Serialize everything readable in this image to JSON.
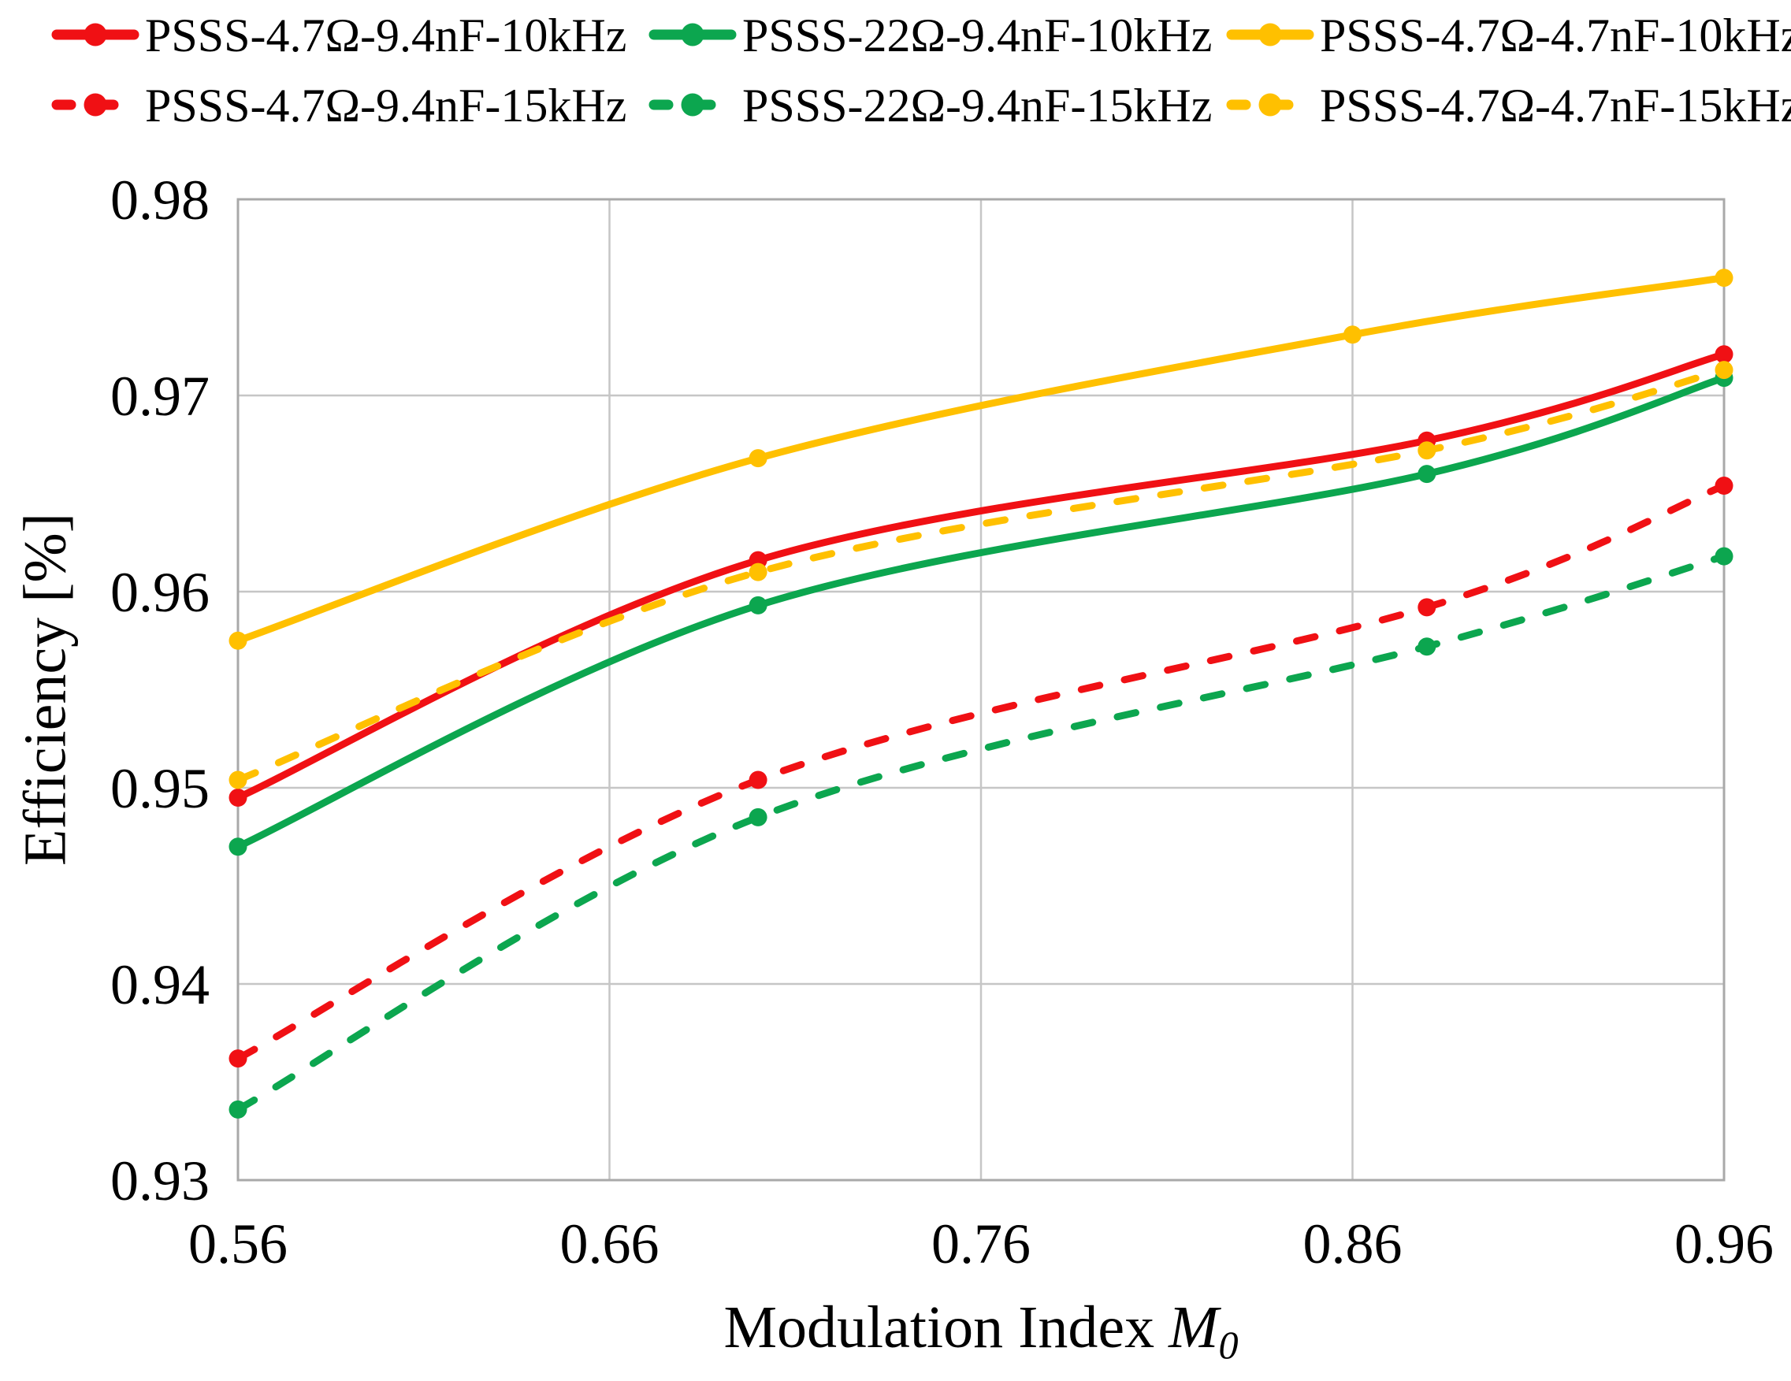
{
  "chart_data": {
    "type": "line",
    "xlabel": {
      "text": "Modulation Index",
      "var": "M",
      "sub": "0"
    },
    "ylabel": "Efficiency [%]",
    "xlim": [
      0.56,
      0.96
    ],
    "ylim": [
      0.93,
      0.98
    ],
    "x_ticks": [
      0.56,
      0.66,
      0.76,
      0.86,
      0.96
    ],
    "x_tick_labels": [
      "0.56",
      "0.66",
      "0.76",
      "0.86",
      "0.96"
    ],
    "y_ticks": [
      0.93,
      0.94,
      0.95,
      0.96,
      0.97,
      0.98
    ],
    "y_tick_labels": [
      "0.93",
      "0.94",
      "0.95",
      "0.96",
      "0.97",
      "0.98"
    ],
    "grid": true,
    "legend_position": "top",
    "background_color": "#FFFFFF",
    "grid_color": "#C6C6C6",
    "axis_color": "#A9A9A9",
    "series": [
      {
        "name": "PSSS-4.7Ω-9.4nF-10kHz",
        "color": "#F01014",
        "dash": false,
        "x": [
          0.56,
          0.7,
          0.88,
          0.96
        ],
        "y": [
          0.9495,
          0.9616,
          0.9677,
          0.9721
        ]
      },
      {
        "name": "PSSS-22Ω-9.4nF-10kHz",
        "color": "#0CA64F",
        "dash": false,
        "x": [
          0.56,
          0.7,
          0.88,
          0.96
        ],
        "y": [
          0.947,
          0.9593,
          0.966,
          0.9709
        ]
      },
      {
        "name": "PSSS-4.7Ω-4.7nF-10kHz",
        "color": "#FFC000",
        "dash": false,
        "x": [
          0.56,
          0.7,
          0.86,
          0.96
        ],
        "y": [
          0.9575,
          0.9668,
          0.9731,
          0.976
        ]
      },
      {
        "name": "PSSS-4.7Ω-9.4nF-15kHz",
        "color": "#F01014",
        "dash": true,
        "x": [
          0.56,
          0.7,
          0.88,
          0.96
        ],
        "y": [
          0.9362,
          0.9504,
          0.9592,
          0.9654
        ]
      },
      {
        "name": "PSSS-22Ω-9.4nF-15kHz",
        "color": "#0CA64F",
        "dash": true,
        "x": [
          0.56,
          0.7,
          0.88,
          0.96
        ],
        "y": [
          0.9336,
          0.9485,
          0.9572,
          0.9618
        ]
      },
      {
        "name": "PSSS-4.7Ω-4.7nF-15kHz",
        "color": "#FFC000",
        "dash": true,
        "x": [
          0.56,
          0.7,
          0.88,
          0.96
        ],
        "y": [
          0.9504,
          0.961,
          0.9672,
          0.9713
        ]
      }
    ]
  }
}
